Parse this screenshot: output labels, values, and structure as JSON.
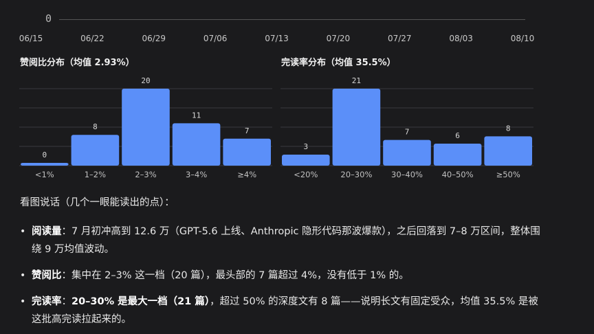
{
  "timeline": {
    "zero_label": "0",
    "dates": [
      "06/15",
      "06/22",
      "06/29",
      "07/06",
      "07/13",
      "07/20",
      "07/27",
      "08/03",
      "08/10"
    ]
  },
  "colors": {
    "bar": "#5b8ff9",
    "grid": "#3a3a3e",
    "background": "#1b1b1d"
  },
  "chart_data": [
    {
      "type": "bar",
      "title": "赞阅比分布（均值 2.93%）",
      "categories": [
        "<1%",
        "1–2%",
        "2–3%",
        "3–4%",
        "≥4%"
      ],
      "values": [
        0,
        8,
        20,
        11,
        7
      ],
      "ylim": [
        0,
        20
      ]
    },
    {
      "type": "bar",
      "title": "完读率分布（均值 35.5%）",
      "categories": [
        "<20%",
        "20–30%",
        "30–40%",
        "40–50%",
        "≥50%"
      ],
      "values": [
        3,
        21,
        7,
        6,
        8
      ],
      "ylim": [
        0,
        21
      ]
    }
  ],
  "notes": {
    "intro": "看图说话（几个一眼能读出的点）：",
    "bullets": [
      {
        "label": "阅读量",
        "sep": "：",
        "strong": "",
        "text": "7 月初冲高到 12.6 万（GPT-5.6 上线、Anthropic 隐形代码那波爆款），之后回落到 7–8 万区间，整体围绕 9 万均值波动。"
      },
      {
        "label": "赞阅比",
        "sep": "：",
        "strong": "",
        "text": "集中在 2–3% 这一档（20 篇），最头部的 7 篇超过 4%，没有低于 1% 的。"
      },
      {
        "label": "完读率",
        "sep": "：",
        "strong": "20–30% 是最大一档（21 篇）",
        "text": "，超过 50% 的深度文有 8 篇——说明长文有固定受众，均值 35.5% 是被这批高完读拉起来的。"
      }
    ]
  }
}
